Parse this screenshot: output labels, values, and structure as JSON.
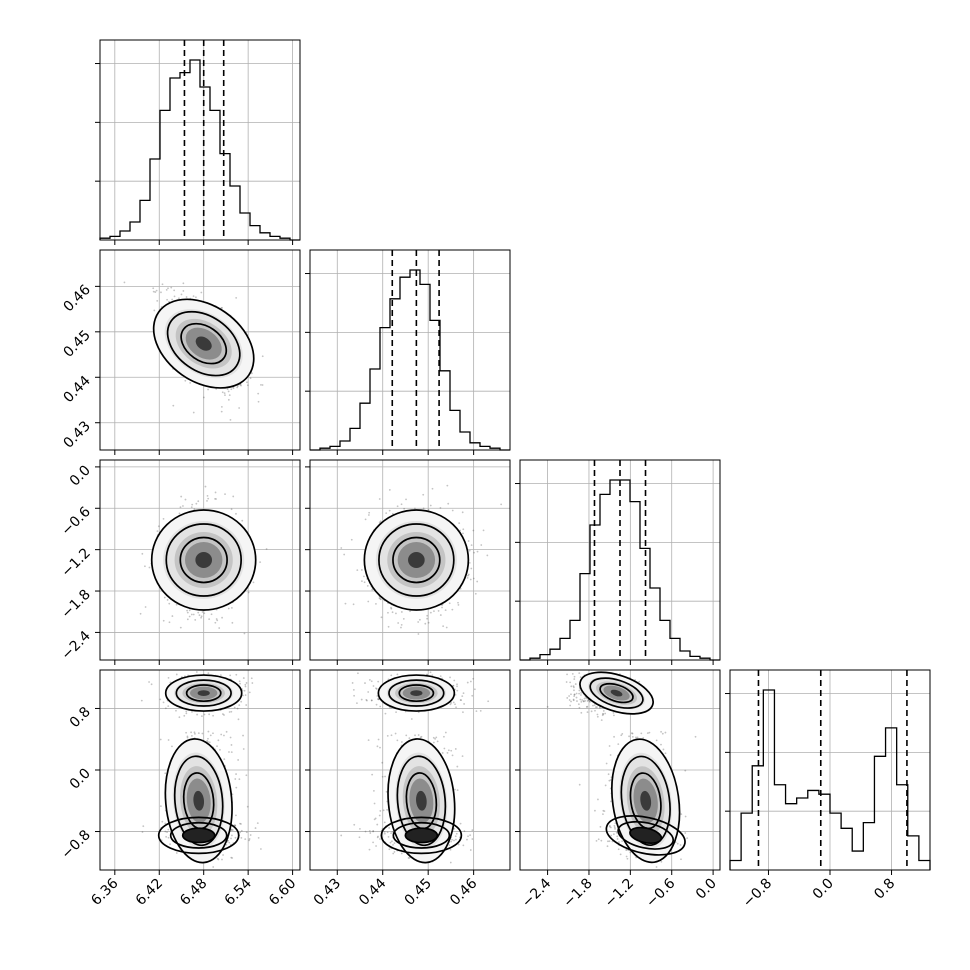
{
  "chart_data": {
    "type": "corner",
    "title": "",
    "grid": true,
    "quantile_lines": [
      0.16,
      0.5,
      0.84
    ],
    "parameters": [
      {
        "ticks": [
          6.36,
          6.42,
          6.48,
          6.54,
          6.6
        ],
        "tick_labels": [
          "6.36",
          "6.42",
          "6.48",
          "6.54",
          "6.60"
        ],
        "range": [
          6.34,
          6.61
        ],
        "quantiles": [
          6.454,
          6.48,
          6.507
        ],
        "histogram": [
          1,
          2,
          5,
          10,
          22,
          45,
          72,
          90,
          93,
          100,
          85,
          72,
          48,
          30,
          15,
          8,
          4,
          2,
          1,
          0
        ]
      },
      {
        "ticks": [
          0.43,
          0.44,
          0.45,
          0.46
        ],
        "tick_labels": [
          "0.43",
          "0.44",
          "0.45",
          "0.46"
        ],
        "range": [
          0.424,
          0.468
        ],
        "quantiles": [
          0.4421,
          0.4474,
          0.4524
        ],
        "histogram": [
          0,
          1,
          2,
          5,
          12,
          26,
          45,
          68,
          84,
          96,
          100,
          92,
          72,
          44,
          22,
          10,
          4,
          2,
          1,
          0
        ]
      },
      {
        "ticks": [
          -2.4,
          -1.8,
          -1.2,
          -0.6,
          0.0
        ],
        "tick_labels": [
          "−2.4",
          "−1.8",
          "−1.2",
          "−0.6",
          "0.0"
        ],
        "range": [
          -2.8,
          0.1
        ],
        "quantiles": [
          -1.72,
          -1.35,
          -0.98
        ],
        "histogram": [
          0,
          1,
          3,
          6,
          12,
          22,
          48,
          75,
          92,
          100,
          100,
          88,
          62,
          40,
          22,
          12,
          5,
          2,
          1,
          0
        ]
      },
      {
        "ticks": [
          -0.8,
          0.0,
          0.8
        ],
        "tick_labels": [
          "−0.8",
          "0.0",
          "0.8"
        ],
        "range": [
          -1.3,
          1.3
        ],
        "quantiles": [
          -0.93,
          -0.12,
          1.0
        ],
        "histogram": [
          5,
          30,
          55,
          95,
          45,
          35,
          38,
          42,
          40,
          30,
          22,
          10,
          25,
          60,
          75,
          45,
          18,
          5
        ],
        "histogram_scale": 100
      }
    ]
  }
}
